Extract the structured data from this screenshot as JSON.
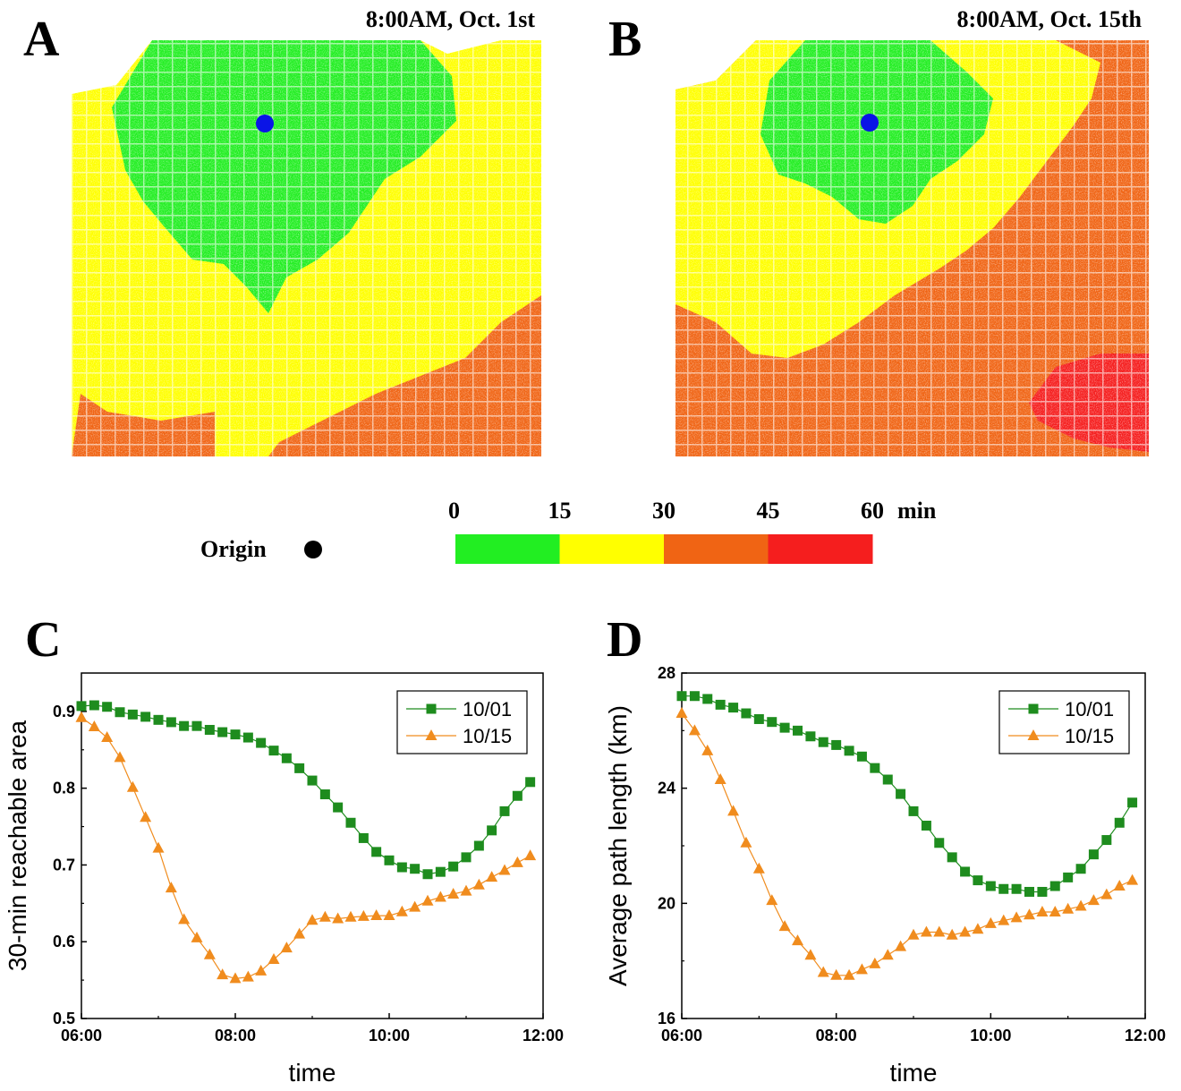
{
  "maps": {
    "panel_a": {
      "letter": "A",
      "title": "8:00AM, Oct. 1st"
    },
    "panel_b": {
      "letter": "B",
      "title": "8:00AM, Oct. 15th"
    },
    "origin_label": "Origin",
    "origin_color": "#0a14e6",
    "scale": {
      "ticks": [
        "0",
        "15",
        "30",
        "45",
        "60"
      ],
      "unit": "min",
      "colors": [
        "#22ee22",
        "#ffff00",
        "#f06414",
        "#f51e1e"
      ]
    }
  },
  "chart_data": [
    {
      "type": "line",
      "panel": "C",
      "title": "",
      "xlabel": "time",
      "ylabel": "30-min reachable area",
      "xlim": [
        6.0,
        12.0
      ],
      "ylim": [
        0.5,
        0.95
      ],
      "xticks": [
        6,
        8,
        10,
        12
      ],
      "xtick_labels": [
        "06:00",
        "08:00",
        "10:00",
        "12:00"
      ],
      "yticks": [
        0.5,
        0.6,
        0.7,
        0.8,
        0.9
      ],
      "ytick_labels": [
        "0.5",
        "0.6",
        "0.7",
        "0.8",
        "0.9"
      ],
      "legend": "top-right",
      "grid": false,
      "x": [
        6.0,
        6.167,
        6.333,
        6.5,
        6.667,
        6.833,
        7.0,
        7.167,
        7.333,
        7.5,
        7.667,
        7.833,
        8.0,
        8.167,
        8.333,
        8.5,
        8.667,
        8.833,
        9.0,
        9.167,
        9.333,
        9.5,
        9.667,
        9.833,
        10.0,
        10.167,
        10.333,
        10.5,
        10.667,
        10.833,
        11.0,
        11.167,
        11.333,
        11.5,
        11.667,
        11.833
      ],
      "series": [
        {
          "name": "10/01",
          "color": "#1e8c1e",
          "marker": "square",
          "values": [
            0.907,
            0.908,
            0.906,
            0.899,
            0.896,
            0.893,
            0.889,
            0.886,
            0.881,
            0.881,
            0.876,
            0.873,
            0.87,
            0.866,
            0.859,
            0.849,
            0.839,
            0.826,
            0.81,
            0.792,
            0.775,
            0.755,
            0.735,
            0.717,
            0.706,
            0.697,
            0.695,
            0.688,
            0.691,
            0.698,
            0.71,
            0.725,
            0.745,
            0.77,
            0.79,
            0.808
          ]
        },
        {
          "name": "10/15",
          "color": "#f08c1e",
          "marker": "triangle",
          "values": [
            0.892,
            0.88,
            0.866,
            0.84,
            0.801,
            0.762,
            0.722,
            0.67,
            0.629,
            0.605,
            0.583,
            0.557,
            0.552,
            0.554,
            0.562,
            0.577,
            0.592,
            0.61,
            0.628,
            0.632,
            0.63,
            0.632,
            0.633,
            0.634,
            0.634,
            0.639,
            0.645,
            0.653,
            0.658,
            0.662,
            0.666,
            0.674,
            0.684,
            0.693,
            0.703,
            0.712
          ]
        }
      ]
    },
    {
      "type": "line",
      "panel": "D",
      "title": "",
      "xlabel": "time",
      "ylabel": "Average path length (km)",
      "xlim": [
        6.0,
        12.0
      ],
      "ylim": [
        16,
        28
      ],
      "xticks": [
        6,
        8,
        10,
        12
      ],
      "xtick_labels": [
        "06:00",
        "08:00",
        "10:00",
        "12:00"
      ],
      "yticks": [
        16,
        20,
        24,
        28
      ],
      "ytick_labels": [
        "16",
        "20",
        "24",
        "28"
      ],
      "legend": "top-right",
      "grid": false,
      "x": [
        6.0,
        6.167,
        6.333,
        6.5,
        6.667,
        6.833,
        7.0,
        7.167,
        7.333,
        7.5,
        7.667,
        7.833,
        8.0,
        8.167,
        8.333,
        8.5,
        8.667,
        8.833,
        9.0,
        9.167,
        9.333,
        9.5,
        9.667,
        9.833,
        10.0,
        10.167,
        10.333,
        10.5,
        10.667,
        10.833,
        11.0,
        11.167,
        11.333,
        11.5,
        11.667,
        11.833
      ],
      "series": [
        {
          "name": "10/01",
          "color": "#1e8c1e",
          "marker": "square",
          "values": [
            27.2,
            27.2,
            27.1,
            26.9,
            26.8,
            26.6,
            26.4,
            26.3,
            26.1,
            26.0,
            25.8,
            25.6,
            25.5,
            25.3,
            25.1,
            24.7,
            24.3,
            23.8,
            23.2,
            22.7,
            22.1,
            21.6,
            21.1,
            20.8,
            20.6,
            20.5,
            20.5,
            20.4,
            20.4,
            20.6,
            20.9,
            21.2,
            21.7,
            22.2,
            22.8,
            23.5
          ]
        },
        {
          "name": "10/15",
          "color": "#f08c1e",
          "marker": "triangle",
          "values": [
            26.6,
            26.0,
            25.3,
            24.3,
            23.2,
            22.1,
            21.2,
            20.1,
            19.2,
            18.7,
            18.2,
            17.6,
            17.5,
            17.5,
            17.7,
            17.9,
            18.2,
            18.5,
            18.9,
            19.0,
            19.0,
            18.9,
            19.0,
            19.1,
            19.3,
            19.4,
            19.5,
            19.6,
            19.7,
            19.7,
            19.8,
            19.9,
            20.1,
            20.3,
            20.6,
            20.8
          ]
        }
      ]
    }
  ]
}
